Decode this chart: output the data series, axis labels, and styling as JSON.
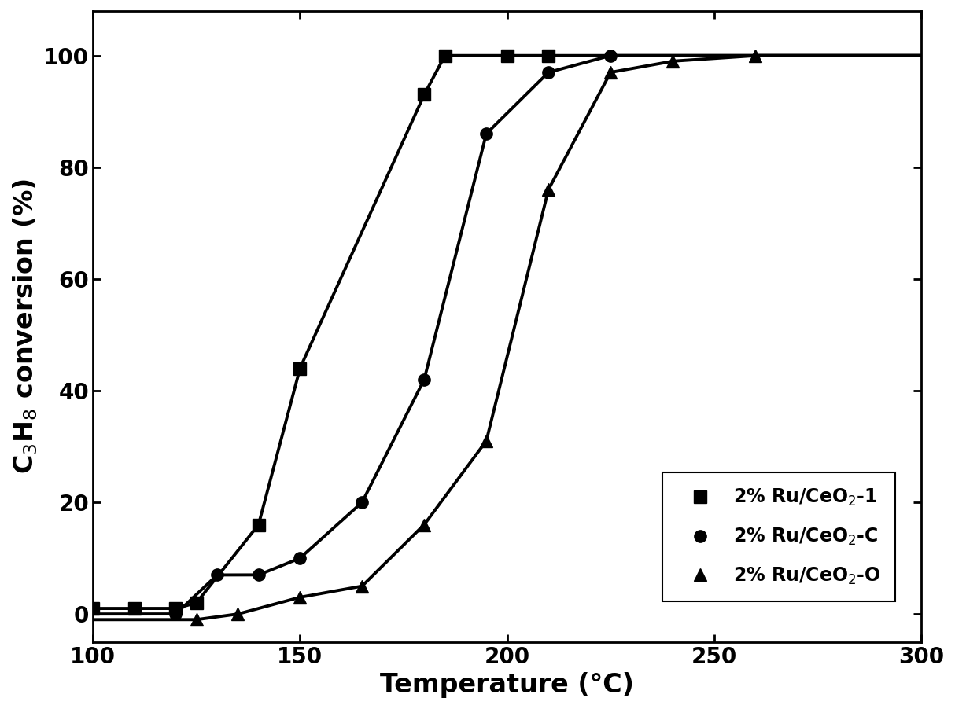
{
  "series": [
    {
      "label": "2% Ru/CeO$_2$-1",
      "marker": "s",
      "x_data": [
        100,
        110,
        120,
        125,
        140,
        150,
        180,
        185,
        200,
        210
      ],
      "y_data": [
        1,
        1,
        1,
        2,
        16,
        44,
        93,
        100,
        100,
        100
      ],
      "midpoint": 168,
      "steepness": 0.22
    },
    {
      "label": "2% Ru/CeO$_2$-C",
      "marker": "o",
      "x_data": [
        120,
        130,
        140,
        150,
        165,
        180,
        195,
        210,
        225
      ],
      "y_data": [
        0,
        7,
        7,
        10,
        20,
        42,
        86,
        97,
        100
      ],
      "midpoint": 188,
      "steepness": 0.19
    },
    {
      "label": "2% Ru/CeO$_2$-O",
      "marker": "^",
      "x_data": [
        125,
        135,
        150,
        165,
        180,
        195,
        210,
        225,
        240,
        260
      ],
      "y_data": [
        -1,
        0,
        3,
        5,
        16,
        31,
        76,
        97,
        99,
        100
      ],
      "midpoint": 218,
      "steepness": 0.18
    }
  ],
  "xlabel": "Temperature (°C)",
  "ylabel": "C$_3$H$_8$ conversion (%)",
  "xlim": [
    100,
    300
  ],
  "ylim": [
    -5,
    108
  ],
  "xticks": [
    100,
    150,
    200,
    250,
    300
  ],
  "yticks": [
    0,
    20,
    40,
    60,
    80,
    100
  ],
  "color": "#000000",
  "linewidth": 2.8,
  "markersize": 11,
  "background_color": "#ffffff",
  "legend_fontsize": 17,
  "axis_fontsize": 24,
  "tick_fontsize": 20
}
